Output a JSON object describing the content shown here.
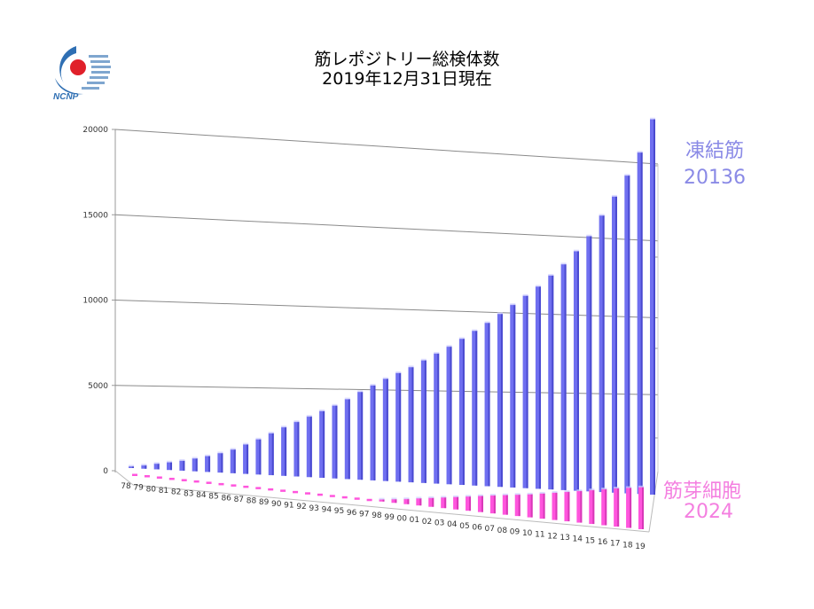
{
  "logo": {
    "text": "NCNP",
    "colors": {
      "blue": "#2f6fb3",
      "red": "#e0202a"
    }
  },
  "chart_data": {
    "type": "bar",
    "title": "筋レポジトリー総検体数",
    "subtitle": "2019年12月31日現在",
    "categories": [
      "78",
      "79",
      "80",
      "81",
      "82",
      "83",
      "84",
      "85",
      "86",
      "87",
      "88",
      "89",
      "90",
      "91",
      "92",
      "93",
      "94",
      "95",
      "96",
      "97",
      "98",
      "99",
      "00",
      "01",
      "02",
      "03",
      "04",
      "05",
      "06",
      "07",
      "08",
      "09",
      "10",
      "11",
      "12",
      "13",
      "14",
      "15",
      "16",
      "17",
      "18",
      "19"
    ],
    "series": [
      {
        "name": "凍結筋",
        "end_value_label": "20136",
        "color": "#6f6ff0",
        "values": [
          120,
          230,
          380,
          510,
          650,
          830,
          1020,
          1240,
          1500,
          1850,
          2200,
          2600,
          3000,
          3350,
          3700,
          4050,
          4400,
          4800,
          5250,
          5650,
          6050,
          6400,
          6750,
          7150,
          7550,
          7950,
          8400,
          8850,
          9300,
          9800,
          10300,
          10800,
          11300,
          11900,
          12500,
          13200,
          14000,
          15100,
          16100,
          17200,
          18400,
          20136
        ]
      },
      {
        "name": "筋芽細胞",
        "end_value_label": "2024",
        "color": "#ff55dd",
        "values": [
          0,
          0,
          0,
          0,
          0,
          0,
          0,
          0,
          0,
          0,
          0,
          0,
          0,
          0,
          0,
          0,
          0,
          0,
          0,
          50,
          120,
          200,
          280,
          380,
          470,
          560,
          650,
          740,
          830,
          920,
          1000,
          1080,
          1160,
          1260,
          1360,
          1460,
          1560,
          1660,
          1760,
          1860,
          1940,
          2024
        ]
      }
    ],
    "yticks": [
      "0",
      "5000",
      "10000",
      "15000",
      "20000"
    ],
    "ylim": [
      0,
      20000
    ],
    "grid": true,
    "legend": "series names labeled at right end of bars"
  }
}
